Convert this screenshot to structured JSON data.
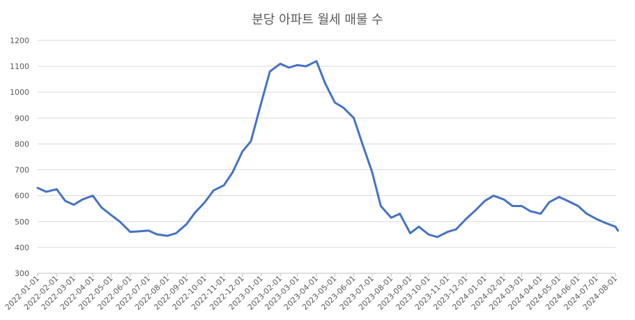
{
  "chart_data": {
    "type": "line",
    "title": "분당 아파트 월세 매물 수",
    "xlabel": "",
    "ylabel": "",
    "ylim": [
      300,
      1200
    ],
    "yticks": [
      300,
      400,
      500,
      600,
      700,
      800,
      900,
      1000,
      1100,
      1200
    ],
    "grid": true,
    "legend": "none",
    "line_color": "#4472C4",
    "x_tick_labels": [
      "2022-01-01",
      "2022-02-01",
      "2022-03-01",
      "2022-04-01",
      "2022-05-01",
      "2022-06-01",
      "2022-07-01",
      "2022-08-01",
      "2022-09-01",
      "2022-10-01",
      "2022-11-01",
      "2022-12-01",
      "2023-01-01",
      "2023-02-01",
      "2023-03-01",
      "2023-04-01",
      "2023-05-01",
      "2023-06-01",
      "2023-07-01",
      "2023-08-01",
      "2023-09-01",
      "2023-10-01",
      "2023-11-01",
      "2023-12-01",
      "2024-01-01",
      "2024-02-01",
      "2024-03-01",
      "2024-04-01",
      "2024-05-01",
      "2024-06-01",
      "2024-07-01",
      "2024-08-01"
    ],
    "series": [
      {
        "x": [
          "2022-01-01",
          "2022-01-15",
          "2022-02-01",
          "2022-02-15",
          "2022-03-01",
          "2022-03-15",
          "2022-04-01",
          "2022-04-15",
          "2022-05-01",
          "2022-05-15",
          "2022-06-01",
          "2022-06-15",
          "2022-07-01",
          "2022-07-15",
          "2022-08-01",
          "2022-08-15",
          "2022-09-01",
          "2022-09-15",
          "2022-10-01",
          "2022-10-15",
          "2022-11-01",
          "2022-11-15",
          "2022-12-01",
          "2022-12-15",
          "2023-01-01",
          "2023-01-15",
          "2023-02-01",
          "2023-02-15",
          "2023-03-01",
          "2023-03-15",
          "2023-04-01",
          "2023-04-15",
          "2023-05-01",
          "2023-05-15",
          "2023-06-01",
          "2023-06-15",
          "2023-07-01",
          "2023-07-15",
          "2023-08-01",
          "2023-08-15",
          "2023-09-01",
          "2023-09-15",
          "2023-10-01",
          "2023-10-15",
          "2023-11-01",
          "2023-11-15",
          "2023-12-01",
          "2023-12-15",
          "2024-01-01",
          "2024-01-15",
          "2024-02-01",
          "2024-02-15",
          "2024-03-01",
          "2024-03-15",
          "2024-04-01",
          "2024-04-15",
          "2024-05-01",
          "2024-05-15",
          "2024-06-01",
          "2024-06-15",
          "2024-07-01",
          "2024-07-15",
          "2024-08-01",
          "2024-08-05"
        ],
        "values": [
          630,
          615,
          625,
          580,
          565,
          585,
          600,
          555,
          525,
          500,
          460,
          462,
          465,
          450,
          445,
          455,
          490,
          535,
          575,
          620,
          640,
          690,
          770,
          810,
          960,
          1080,
          1110,
          1095,
          1105,
          1100,
          1120,
          1035,
          960,
          940,
          900,
          800,
          690,
          560,
          515,
          530,
          455,
          480,
          450,
          440,
          460,
          470,
          510,
          540,
          580,
          600,
          585,
          560,
          560,
          540,
          530,
          575,
          595,
          580,
          560,
          530,
          510,
          495,
          480,
          465
        ]
      }
    ]
  }
}
